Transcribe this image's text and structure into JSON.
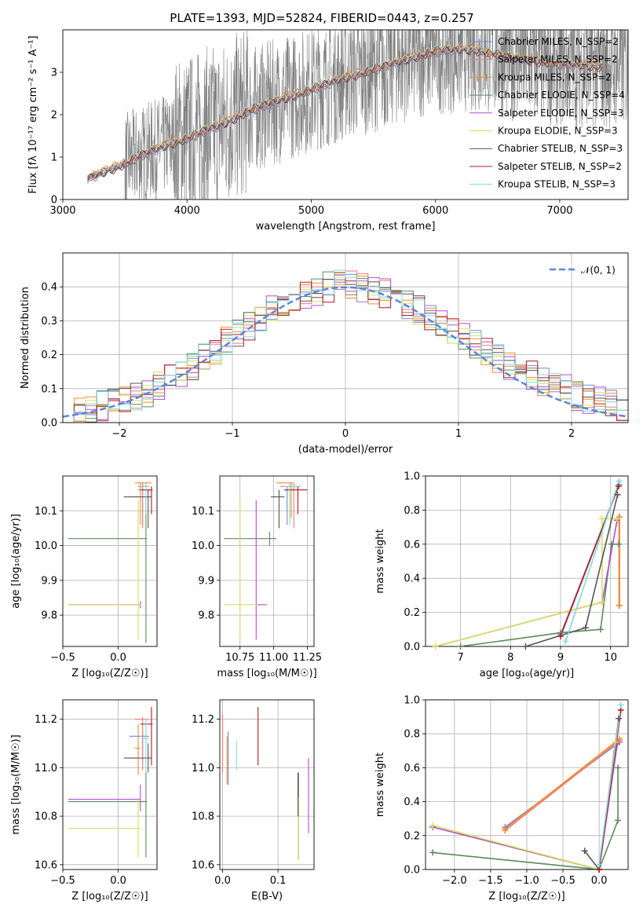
{
  "figure_title": "PLATE=1393, MJD=52824, FIBERID=0443, z=0.257",
  "colors": {
    "Chabrier MILES": "#7a86d6",
    "Salpeter MILES": "#ef7f6f",
    "Kroupa MILES": "#f28e2b",
    "Chabrier ELODIE": "#5c8a5c",
    "Salpeter ELODIE": "#b04fd1",
    "Kroupa ELODIE": "#d6e05a",
    "Chabrier STELIB": "#555555",
    "Salpeter STELIB": "#b31b1b",
    "Kroupa STELIB": "#7fd9e3",
    "data": "#808080",
    "normal": "#5b86d9"
  },
  "chart_data": [
    {
      "id": "spectrum",
      "type": "line",
      "title": "PLATE=1393, MJD=52824, FIBERID=0443, z=0.257",
      "xlabel": "wavelength [Angstrom, rest frame]",
      "ylabel": "Flux [fλ 10⁻¹⁷ erg cm⁻² s⁻¹ A⁻¹]",
      "xlim": [
        3000,
        7550
      ],
      "ylim": [
        0,
        4
      ],
      "xticks": [
        "3000",
        "4000",
        "5000",
        "6000",
        "7000"
      ],
      "yticks": [
        "0",
        "1",
        "2",
        "3"
      ],
      "legend_position": "top-right",
      "legend": [
        "Chabrier MILES, N_SSP=2",
        "Salpeter MILES, N_SSP=2",
        "Kroupa MILES, N_SSP=2",
        "Chabrier ELODIE, N_SSP=4",
        "Salpeter ELODIE, N_SSP=3",
        "Kroupa ELODIE, N_SSP=3",
        "Chabrier STELIB, N_SSP=3",
        "Salpeter STELIB, N_SSP=2",
        "Kroupa STELIB, N_SSP=3"
      ],
      "model_continuum": {
        "x": [
          3200,
          3500,
          3600,
          3800,
          4000,
          4300,
          4500,
          4800,
          5000,
          5300,
          5600,
          5800,
          6000,
          6300,
          6600,
          7000,
          7300
        ],
        "y": [
          0.5,
          0.85,
          1.0,
          1.25,
          1.45,
          1.8,
          2.1,
          2.4,
          2.6,
          2.9,
          3.15,
          3.35,
          3.5,
          3.55,
          3.35,
          3.2,
          3.15
        ]
      }
    },
    {
      "id": "residuals",
      "type": "step",
      "xlabel": "(data-model)/error",
      "ylabel": "Normed distribution",
      "xlim": [
        -2.5,
        2.5
      ],
      "ylim": [
        0,
        0.5
      ],
      "xticks": [
        "−2",
        "−1",
        "0",
        "1",
        "2"
      ],
      "yticks": [
        "0.0",
        "0.1",
        "0.2",
        "0.3",
        "0.4"
      ],
      "legend": [
        "𝒩(0, 1)"
      ],
      "legend_position": "top-right",
      "bins": [
        -2.5,
        -2.4,
        -2.3,
        -2.2,
        -2.1,
        -2.0,
        -1.9,
        -1.8,
        -1.7,
        -1.6,
        -1.5,
        -1.4,
        -1.3,
        -1.2,
        -1.1,
        -1.0,
        -0.9,
        -0.8,
        -0.7,
        -0.6,
        -0.5,
        -0.4,
        -0.3,
        -0.2,
        -0.1,
        0.0,
        0.1,
        0.2,
        0.3,
        0.4,
        0.5,
        0.6,
        0.7,
        0.8,
        0.9,
        1.0,
        1.1,
        1.2,
        1.3,
        1.4,
        1.5,
        1.6,
        1.7,
        1.8,
        1.9,
        2.0,
        2.1,
        2.2,
        2.3,
        2.4,
        2.5
      ],
      "envelope": [
        0.02,
        0.03,
        0.04,
        0.05,
        0.06,
        0.07,
        0.08,
        0.09,
        0.11,
        0.13,
        0.15,
        0.17,
        0.19,
        0.21,
        0.24,
        0.26,
        0.28,
        0.31,
        0.33,
        0.35,
        0.37,
        0.38,
        0.39,
        0.4,
        0.41,
        0.41,
        0.4,
        0.39,
        0.38,
        0.36,
        0.35,
        0.33,
        0.31,
        0.29,
        0.27,
        0.25,
        0.23,
        0.21,
        0.19,
        0.17,
        0.15,
        0.14,
        0.12,
        0.11,
        0.1,
        0.08,
        0.07,
        0.06,
        0.05,
        0.04
      ]
    },
    {
      "id": "age_vs_Z",
      "type": "errorbar",
      "xlabel": "Z [log₁₀(Z/Z☉)]",
      "ylabel": "age [log₁₀(age/yr)]",
      "xlim": [
        -0.5,
        0.35
      ],
      "ylim": [
        9.71,
        10.2
      ],
      "xticks": [
        "−0.5",
        "0.0"
      ],
      "yticks": [
        "9.8",
        "9.9",
        "10.0",
        "10.1"
      ],
      "points": [
        {
          "model": "Chabrier MILES",
          "x": 0.22,
          "xlo": 0.18,
          "xhi": 0.28,
          "y": 10.16,
          "ylo": 10.06,
          "yhi": 10.18
        },
        {
          "model": "Salpeter MILES",
          "x": 0.22,
          "xlo": 0.18,
          "xhi": 0.28,
          "y": 10.17,
          "ylo": 10.05,
          "yhi": 10.18
        },
        {
          "model": "Kroupa MILES",
          "x": 0.2,
          "xlo": 0.15,
          "xhi": 0.3,
          "y": 10.18,
          "ylo": 10.06,
          "yhi": 10.18
        },
        {
          "model": "Chabrier ELODIE",
          "x": 0.25,
          "xlo": -0.45,
          "xhi": 0.26,
          "y": 10.02,
          "ylo": 9.72,
          "yhi": 10.14
        },
        {
          "model": "Salpeter ELODIE",
          "x": 0.2,
          "xlo": -0.45,
          "xhi": 0.2,
          "y": 9.83,
          "ylo": 9.82,
          "yhi": 9.84
        },
        {
          "model": "Kroupa ELODIE",
          "x": 0.18,
          "xlo": -0.45,
          "xhi": 0.2,
          "y": 9.83,
          "ylo": 9.73,
          "yhi": 10.13
        },
        {
          "model": "Chabrier STELIB",
          "x": 0.27,
          "xlo": 0.05,
          "xhi": 0.3,
          "y": 10.14,
          "ylo": 10.05,
          "yhi": 10.16
        },
        {
          "model": "Salpeter STELIB",
          "x": 0.3,
          "xlo": 0.2,
          "xhi": 0.31,
          "y": 10.16,
          "ylo": 10.09,
          "yhi": 10.17
        },
        {
          "model": "Kroupa STELIB",
          "x": 0.25,
          "xlo": 0.2,
          "xhi": 0.28,
          "y": 10.17,
          "ylo": 10.09,
          "yhi": 10.18
        }
      ]
    },
    {
      "id": "age_vs_mass",
      "type": "errorbar",
      "xlabel": "mass [log₁₀(M/M☉)]",
      "xlim": [
        10.6,
        11.3
      ],
      "ylim": [
        9.71,
        10.2
      ],
      "xticks": [
        "10.75",
        "11.00",
        "11.25"
      ],
      "yticks": [
        "9.8",
        "9.9",
        "10.0",
        "10.1"
      ],
      "points": [
        {
          "model": "Chabrier MILES",
          "x": 11.1,
          "xlo": 11.08,
          "xhi": 11.14,
          "y": 10.16,
          "ylo": 10.06,
          "yhi": 10.17
        },
        {
          "model": "Salpeter MILES",
          "x": 11.15,
          "xlo": 11.05,
          "xhi": 11.2,
          "y": 10.17,
          "ylo": 10.05,
          "yhi": 10.18
        },
        {
          "model": "Kroupa MILES",
          "x": 11.13,
          "xlo": 11.02,
          "xhi": 11.15,
          "y": 10.18,
          "ylo": 10.08,
          "yhi": 10.18
        },
        {
          "model": "Chabrier ELODIE",
          "x": 10.97,
          "xlo": 10.63,
          "xhi": 11.02,
          "y": 10.02,
          "ylo": 10.0,
          "yhi": 10.04
        },
        {
          "model": "Salpeter ELODIE",
          "x": 10.87,
          "xlo": 10.87,
          "xhi": 10.95,
          "y": 9.83,
          "ylo": 9.73,
          "yhi": 10.13
        },
        {
          "model": "Kroupa ELODIE",
          "x": 10.75,
          "xlo": 10.63,
          "xhi": 10.88,
          "y": 9.83,
          "ylo": 9.73,
          "yhi": 10.13
        },
        {
          "model": "Chabrier STELIB",
          "x": 11.04,
          "xlo": 10.98,
          "xhi": 11.08,
          "y": 10.14,
          "ylo": 10.05,
          "yhi": 10.16
        },
        {
          "model": "Salpeter STELIB",
          "x": 11.18,
          "xlo": 11.08,
          "xhi": 11.25,
          "y": 10.16,
          "ylo": 10.09,
          "yhi": 10.17
        },
        {
          "model": "Kroupa STELIB",
          "x": 11.12,
          "xlo": 11.08,
          "xhi": 11.2,
          "y": 10.17,
          "ylo": 10.06,
          "yhi": 10.18
        }
      ]
    },
    {
      "id": "massweight_vs_age",
      "type": "line",
      "xlabel": "age [log₁₀(age/yr)]",
      "ylabel": "mass weight",
      "xlim": [
        6.3,
        10.35
      ],
      "ylim": [
        0,
        1
      ],
      "xticks": [
        "7",
        "8",
        "9",
        "10"
      ],
      "yticks": [
        "0.0",
        "0.2",
        "0.4",
        "0.6",
        "0.8",
        "1.0"
      ],
      "series": [
        {
          "model": "Chabrier MILES",
          "x": [
            9.0,
            10.17
          ],
          "y": [
            0.07,
            0.95
          ]
        },
        {
          "model": "Salpeter MILES",
          "x": [
            10.17,
            10.17
          ],
          "y": [
            0.24,
            0.76
          ]
        },
        {
          "model": "Kroupa MILES",
          "x": [
            10.18,
            10.18
          ],
          "y": [
            0.24,
            0.76
          ]
        },
        {
          "model": "Chabrier ELODIE",
          "x": [
            7.0,
            9.0,
            9.8,
            10.02,
            10.16
          ],
          "y": [
            0.0,
            0.08,
            0.1,
            0.6,
            0.6
          ]
        },
        {
          "model": "Salpeter ELODIE",
          "x": [
            6.5,
            9.83,
            10.13
          ],
          "y": [
            0.0,
            0.26,
            0.74
          ]
        },
        {
          "model": "Kroupa ELODIE",
          "x": [
            6.5,
            9.83,
            9.83,
            10.13
          ],
          "y": [
            0.0,
            0.26,
            0.75,
            0.75
          ]
        },
        {
          "model": "Chabrier STELIB",
          "x": [
            8.3,
            9.5,
            10.14
          ],
          "y": [
            0.0,
            0.11,
            0.89
          ]
        },
        {
          "model": "Salpeter STELIB",
          "x": [
            9.0,
            10.16
          ],
          "y": [
            0.06,
            0.94
          ]
        },
        {
          "model": "Kroupa STELIB",
          "x": [
            9.1,
            10.17
          ],
          "y": [
            0.03,
            0.97
          ]
        }
      ]
    },
    {
      "id": "mass_vs_Z",
      "type": "errorbar",
      "xlabel": "Z [log₁₀(Z/Z☉)]",
      "ylabel": "mass [log₁₀(M/M☉)]",
      "xlim": [
        -0.5,
        0.35
      ],
      "ylim": [
        10.58,
        11.28
      ],
      "xticks": [
        "−0.5",
        "0.0"
      ],
      "yticks": [
        "10.6",
        "10.8",
        "11.0",
        "11.2"
      ],
      "points": [
        {
          "model": "Chabrier MILES",
          "x": 0.22,
          "xlo": 0.1,
          "xhi": 0.28,
          "y": 11.13,
          "ylo": 11.02,
          "yhi": 11.16
        },
        {
          "model": "Salpeter MILES",
          "x": 0.22,
          "xlo": 0.15,
          "xhi": 0.28,
          "y": 11.2,
          "ylo": 10.99,
          "yhi": 11.21
        },
        {
          "model": "Kroupa MILES",
          "x": 0.18,
          "xlo": 0.15,
          "xhi": 0.2,
          "y": 11.08,
          "ylo": 10.97,
          "yhi": 11.18
        },
        {
          "model": "Chabrier ELODIE",
          "x": 0.25,
          "xlo": -0.45,
          "xhi": 0.26,
          "y": 10.86,
          "ylo": 10.63,
          "yhi": 10.98
        },
        {
          "model": "Salpeter ELODIE",
          "x": 0.2,
          "xlo": -0.45,
          "xhi": 0.2,
          "y": 10.87,
          "ylo": 10.82,
          "yhi": 10.93
        },
        {
          "model": "Kroupa ELODIE",
          "x": 0.18,
          "xlo": -0.45,
          "xhi": 0.2,
          "y": 10.75,
          "ylo": 10.63,
          "yhi": 10.87
        },
        {
          "model": "Chabrier STELIB",
          "x": 0.27,
          "xlo": 0.05,
          "xhi": 0.3,
          "y": 11.04,
          "ylo": 10.98,
          "yhi": 11.1
        },
        {
          "model": "Salpeter STELIB",
          "x": 0.3,
          "xlo": 0.2,
          "xhi": 0.31,
          "y": 11.18,
          "ylo": 11.01,
          "yhi": 11.25
        },
        {
          "model": "Kroupa STELIB",
          "x": 0.25,
          "xlo": 0.2,
          "xhi": 0.28,
          "y": 11.12,
          "ylo": 10.98,
          "yhi": 11.2
        }
      ]
    },
    {
      "id": "mass_vs_EBV",
      "type": "errorbar",
      "xlabel": "E(B-V)",
      "xlim": [
        -0.005,
        0.165
      ],
      "ylim": [
        10.58,
        11.28
      ],
      "xticks": [
        "0.0",
        "0.1"
      ],
      "yticks": [
        "10.6",
        "10.8",
        "11.0",
        "11.2"
      ],
      "points": [
        {
          "model": "Chabrier MILES",
          "x": 0.01,
          "y": 11.05,
          "ylo": 10.93,
          "yhi": 11.15
        },
        {
          "model": "Salpeter MILES",
          "x": 0.0,
          "y": 11.1,
          "ylo": 10.98,
          "yhi": 11.22
        },
        {
          "model": "Kroupa MILES",
          "x": 0.008,
          "y": 11.04,
          "ylo": 10.93,
          "yhi": 11.13
        },
        {
          "model": "Chabrier ELODIE",
          "x": 0.137,
          "y": 10.85,
          "ylo": 10.62,
          "yhi": 10.98
        },
        {
          "model": "Salpeter ELODIE",
          "x": 0.155,
          "y": 10.88,
          "ylo": 10.73,
          "yhi": 11.04
        },
        {
          "model": "Kroupa ELODIE",
          "x": 0.137,
          "y": 10.75,
          "ylo": 10.62,
          "yhi": 10.88
        },
        {
          "model": "Chabrier STELIB",
          "x": 0.136,
          "y": 10.9,
          "ylo": 10.8,
          "yhi": 10.98
        },
        {
          "model": "Salpeter STELIB",
          "x": 0.064,
          "y": 11.13,
          "ylo": 11.01,
          "yhi": 11.25
        },
        {
          "model": "Kroupa STELIB",
          "x": 0.025,
          "y": 11.05,
          "ylo": 10.99,
          "yhi": 11.11
        }
      ]
    },
    {
      "id": "massweight_vs_Z",
      "type": "line",
      "xlabel": "Z [log₁₀(Z/Z☉)]",
      "ylabel": "mass weight",
      "xlim": [
        -2.4,
        0.4
      ],
      "ylim": [
        0,
        1
      ],
      "xticks": [
        "−2.0",
        "−1.5",
        "−1.0",
        "−0.5",
        "0.0"
      ],
      "yticks": [
        "0.0",
        "0.2",
        "0.4",
        "0.6",
        "0.8",
        "1.0"
      ],
      "series": [
        {
          "model": "Chabrier MILES",
          "x": [
            -1.3,
            0.28
          ],
          "y": [
            0.25,
            0.75
          ]
        },
        {
          "model": "Salpeter MILES",
          "x": [
            -1.3,
            0.28
          ],
          "y": [
            0.23,
            0.76
          ]
        },
        {
          "model": "Kroupa MILES",
          "x": [
            -1.3,
            0.28
          ],
          "y": [
            0.24,
            0.77
          ]
        },
        {
          "model": "Chabrier ELODIE",
          "x": [
            -2.3,
            0.0,
            0.26,
            0.26
          ],
          "y": [
            0.1,
            0.0,
            0.29,
            0.6
          ]
        },
        {
          "model": "Salpeter ELODIE",
          "x": [
            -2.3,
            0.0,
            0.25
          ],
          "y": [
            0.25,
            0.0,
            0.74
          ]
        },
        {
          "model": "Kroupa ELODIE",
          "x": [
            -2.3,
            0.0,
            0.22
          ],
          "y": [
            0.26,
            0.0,
            0.75
          ]
        },
        {
          "model": "Chabrier STELIB",
          "x": [
            -0.2,
            0.0,
            0.27
          ],
          "y": [
            0.11,
            0.0,
            0.89
          ]
        },
        {
          "model": "Salpeter STELIB",
          "x": [
            0.0,
            0.3
          ],
          "y": [
            0.0,
            0.94
          ]
        },
        {
          "model": "Kroupa STELIB",
          "x": [
            0.0,
            0.3
          ],
          "y": [
            0.03,
            0.97
          ]
        }
      ]
    }
  ]
}
